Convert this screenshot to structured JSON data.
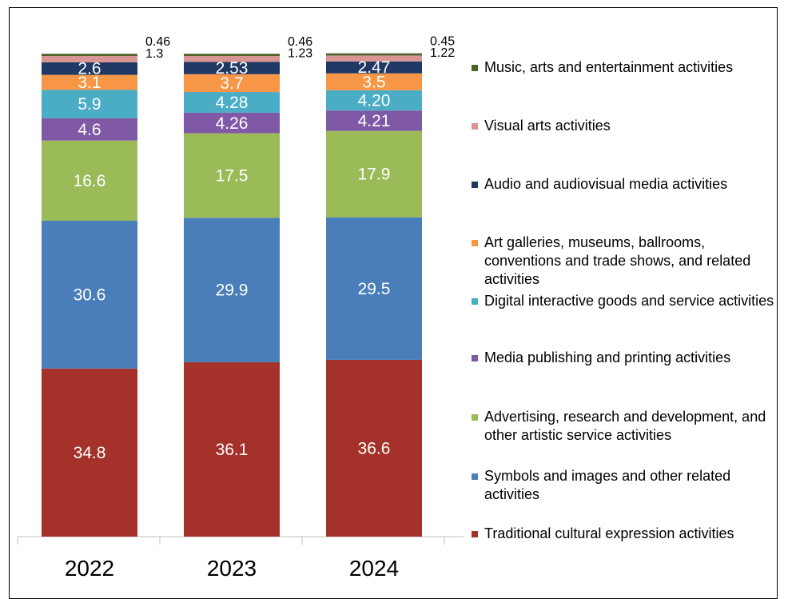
{
  "chart_data": {
    "type": "bar",
    "stacked": true,
    "categories": [
      "2022",
      "2023",
      "2024"
    ],
    "ylim": [
      0,
      100
    ],
    "grid": false,
    "legend_position": "right",
    "series": [
      {
        "name": "Traditional cultural expression activities",
        "color": "#a5322a",
        "values": [
          34.8,
          36.1,
          36.6
        ],
        "labels": [
          "34.8",
          "36.1",
          "36.6"
        ]
      },
      {
        "name": "Symbols and images and other related activities",
        "color": "#4a7ebb",
        "values": [
          30.6,
          29.9,
          29.5
        ],
        "labels": [
          "30.6",
          "29.9",
          "29.5"
        ]
      },
      {
        "name": "Advertising, research and development, and other artistic service activities",
        "color": "#9bbb59",
        "values": [
          16.6,
          17.5,
          17.9
        ],
        "labels": [
          "16.6",
          "17.5",
          "17.9"
        ]
      },
      {
        "name": "Media publishing and printing activities",
        "color": "#7f58a6",
        "values": [
          4.6,
          4.26,
          4.21
        ],
        "labels": [
          "4.6",
          "4.26",
          "4.21"
        ]
      },
      {
        "name": "Digital interactive goods and service activities",
        "color": "#4bacc6",
        "values": [
          5.9,
          4.28,
          4.2
        ],
        "labels": [
          "5.9",
          "4.28",
          "4.20"
        ]
      },
      {
        "name": "Art galleries, museums, ballrooms, conventions and trade shows, and related activities",
        "color": "#f79646",
        "values": [
          3.1,
          3.7,
          3.5
        ],
        "labels": [
          "3.1",
          "3.7",
          "3.5"
        ]
      },
      {
        "name": "Audio and audiovisual media activities",
        "color": "#1f3864",
        "values": [
          2.6,
          2.53,
          2.47
        ],
        "labels": [
          "2.6",
          "2.53",
          "2.47"
        ]
      },
      {
        "name": "Visual arts activities",
        "color": "#d99594",
        "values": [
          1.3,
          1.23,
          1.22
        ],
        "labels": [
          "1.3",
          "1.23",
          "1.22"
        ]
      },
      {
        "name": "Music, arts and entertainment activities",
        "color": "#4f6228",
        "values": [
          0.46,
          0.46,
          0.45
        ],
        "labels": [
          "0.46",
          "0.46",
          "0.45"
        ]
      }
    ],
    "legend_order": [
      8,
      7,
      6,
      5,
      4,
      3,
      2,
      1,
      0
    ]
  }
}
